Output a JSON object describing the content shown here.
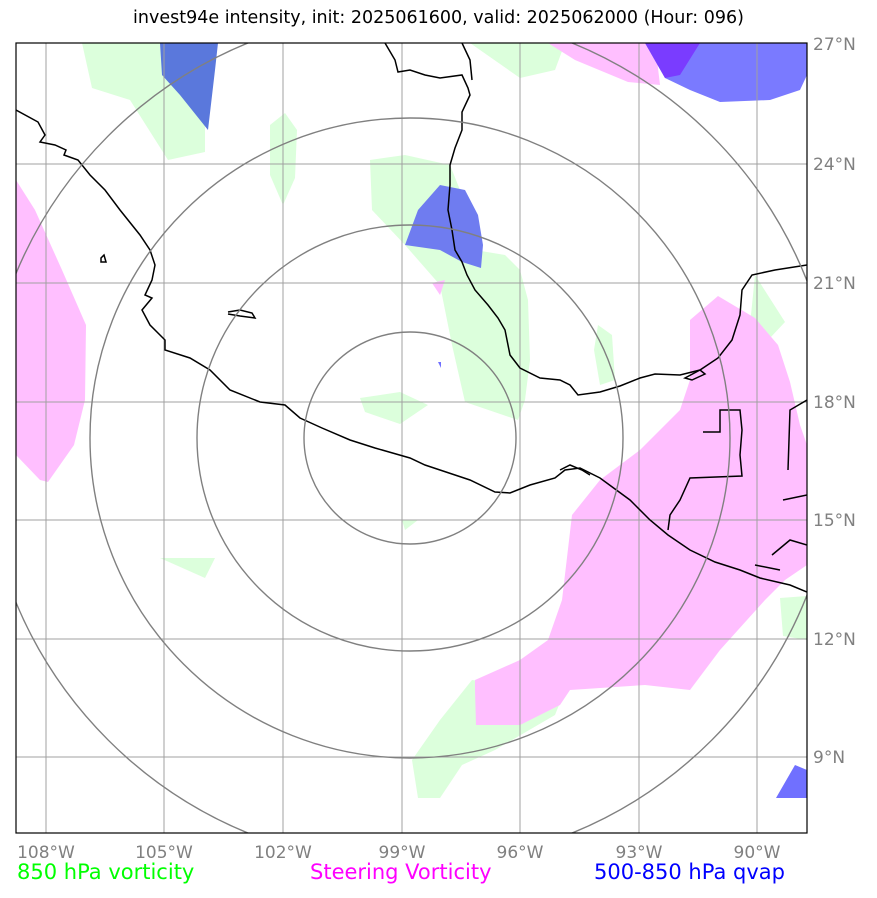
{
  "title": "invest94e intensity, init: 2025061600, valid: 2025062000 (Hour: 096)",
  "lon_labels": [
    "108°W",
    "105°W",
    "102°W",
    "99°W",
    "96°W",
    "93°W",
    "90°W"
  ],
  "lat_labels": [
    "27°N",
    "24°N",
    "21°N",
    "18°N",
    "15°N",
    "12°N",
    "9°N"
  ],
  "legend": {
    "vort850": "850 hPa vorticity",
    "steering": "Steering Vorticity",
    "qvap": "500-850 hPa qvap"
  },
  "colors": {
    "vort850": "#00ff00",
    "steering": "#ff00ff",
    "qvap": "#0000ff",
    "vort850_fill": "#dcffdc",
    "steering_fill": "#ffbfff",
    "qvap_fill": "#7070ff",
    "grid": "#a0a0a0",
    "rings": "#808080"
  }
}
